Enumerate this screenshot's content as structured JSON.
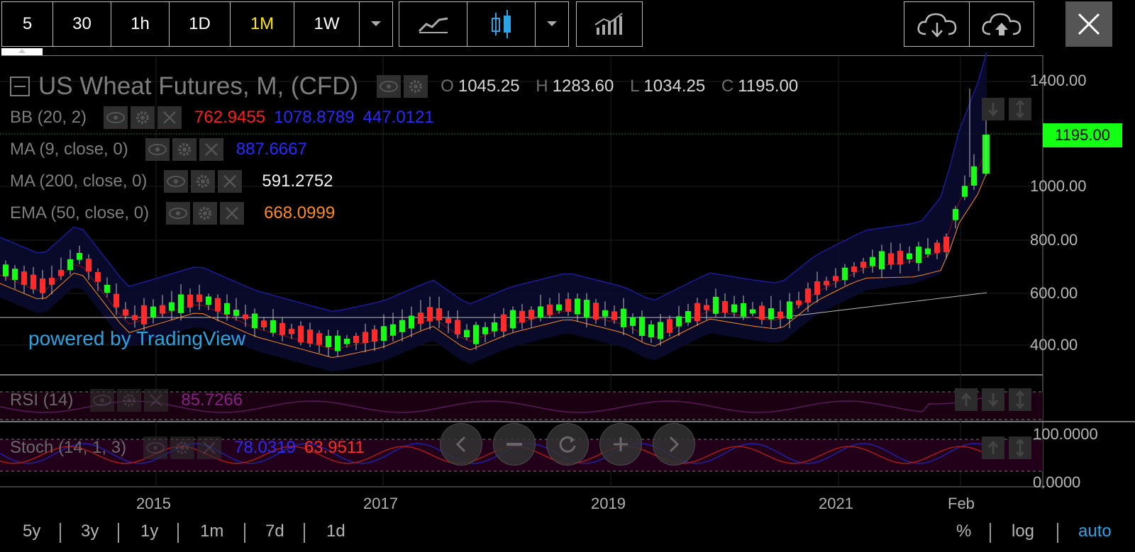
{
  "toolbar": {
    "intervals": [
      "5",
      "30",
      "1h",
      "1D",
      "1M",
      "1W"
    ],
    "active_interval": "1M"
  },
  "chart": {
    "title": "US Wheat Futures, M, (CFD)",
    "ohlc": {
      "o_label": "O",
      "o": "1045.25",
      "h_label": "H",
      "h": "1283.60",
      "l_label": "L",
      "l": "1034.25",
      "c_label": "C",
      "c": "1195.00"
    },
    "current_price": "1195.00",
    "price_axis": [
      "1400.00",
      "1000.00",
      "800.00",
      "600.00",
      "400.00"
    ],
    "time_axis": [
      "2015",
      "2017",
      "2019",
      "2021",
      "Feb"
    ],
    "watermark": "powered by TradingView"
  },
  "indicators": {
    "bb": {
      "label": "BB (20, 2)",
      "v1": "762.9455",
      "v2": "1078.8789",
      "v3": "447.0121"
    },
    "ma9": {
      "label": "MA (9, close, 0)",
      "value": "887.6667"
    },
    "ma200": {
      "label": "MA (200, close, 0)",
      "value": "591.2752"
    },
    "ema50": {
      "label": "EMA (50, close, 0)",
      "value": "668.0999"
    },
    "rsi": {
      "label": "RSI (14)",
      "value": "85.7266"
    },
    "stoch": {
      "label": "Stoch (14, 1, 3)",
      "k": "78.0319",
      "d": "63.9511",
      "axis_top": "100.0000",
      "axis_bottom": "0.0000"
    }
  },
  "colors": {
    "up": "#14ff14",
    "down": "#ff2a2a",
    "bb_red": "#ff1e1e",
    "blue": "#2a2aff",
    "orange": "#ff8c1a",
    "rsi_purple": "#a020a0",
    "accent_blue": "#2aa4e3"
  },
  "bottom_bar": {
    "ranges": [
      "5y",
      "3y",
      "1y",
      "1m",
      "7d",
      "1d"
    ],
    "pct": "%",
    "log": "log",
    "auto": "auto"
  }
}
